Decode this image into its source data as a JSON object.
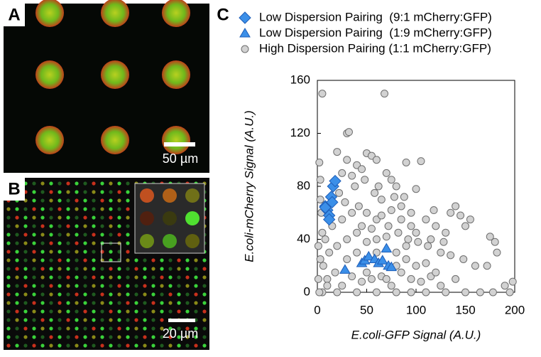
{
  "panel_a": {
    "label": "A",
    "scale_bar": "50 µm"
  },
  "panel_b": {
    "label": "B",
    "scale_bar": "20 µm"
  },
  "chart_data": {
    "type": "scatter",
    "panel_label": "C",
    "xlabel": "E.coli-GFP Signal (A.U.)",
    "ylabel": "E.coli-mCherry Signal (A.U.)",
    "xlim": [
      0,
      200
    ],
    "ylim": [
      0,
      160
    ],
    "xticks": [
      0,
      50,
      100,
      150,
      200
    ],
    "yticks": [
      0,
      40,
      80,
      120,
      160
    ],
    "grid": false,
    "series": [
      {
        "name": "Low Dispersion Pairing  (9:1 mCherry:GFP)",
        "marker": "diamond",
        "color": "#3b8fe8",
        "x": [
          8,
          10,
          12,
          14,
          16,
          18,
          12,
          15,
          8
        ],
        "y": [
          65,
          62,
          58,
          72,
          80,
          84,
          55,
          68,
          64
        ]
      },
      {
        "name": "Low Dispersion Pairing  (1:9 mCherry:GFP)",
        "marker": "triangle",
        "color": "#3b8fe8",
        "x": [
          28,
          45,
          48,
          52,
          58,
          62,
          66,
          70,
          72,
          75
        ],
        "y": [
          17,
          22,
          24,
          27,
          25,
          22,
          24,
          33,
          20,
          19
        ]
      },
      {
        "name": "High Dispersion Pairing (1:1 mCherry:GFP)",
        "marker": "circle",
        "color": "#d2d2d2",
        "x": [
          5,
          68,
          30,
          32,
          20,
          50,
          55,
          60,
          90,
          105,
          2,
          40,
          45,
          70,
          75,
          3,
          25,
          35,
          80,
          100,
          140,
          145,
          155,
          150,
          130,
          120,
          110,
          95,
          85,
          65,
          58,
          38,
          22,
          28,
          42,
          50,
          60,
          72,
          82,
          92,
          102,
          112,
          125,
          135,
          148,
          160,
          175,
          180,
          182,
          172,
          190,
          198,
          195,
          178,
          165,
          150,
          130,
          110,
          95,
          80,
          60,
          40,
          20,
          5,
          2,
          10,
          18,
          25,
          35,
          45,
          55,
          65,
          75,
          85,
          95,
          105,
          115,
          125,
          140,
          12,
          20,
          30,
          40,
          50,
          60,
          70,
          80,
          90,
          100,
          110,
          120,
          5,
          8,
          15,
          25,
          35,
          45,
          55,
          65,
          75,
          85,
          95,
          3,
          6,
          10,
          30,
          40,
          50,
          60,
          70,
          80,
          90,
          100,
          115,
          128,
          135,
          3,
          4,
          30,
          48,
          62,
          78,
          88,
          118,
          1,
          1
        ],
        "y": [
          150,
          150,
          120,
          121,
          106,
          105,
          103,
          100,
          98,
          99,
          98,
          96,
          93,
          90,
          85,
          85,
          90,
          88,
          80,
          78,
          65,
          58,
          55,
          50,
          45,
          50,
          55,
          60,
          65,
          70,
          75,
          80,
          75,
          68,
          65,
          60,
          55,
          50,
          45,
          40,
          38,
          35,
          30,
          28,
          25,
          20,
          42,
          38,
          30,
          20,
          5,
          8,
          0,
          0,
          0,
          0,
          0,
          0,
          0,
          0,
          0,
          0,
          0,
          0,
          0,
          10,
          15,
          5,
          12,
          8,
          10,
          12,
          5,
          15,
          10,
          8,
          12,
          5,
          10,
          30,
          35,
          40,
          45,
          38,
          40,
          42,
          30,
          25,
          20,
          22,
          15,
          45,
          40,
          50,
          55,
          60,
          50,
          48,
          58,
          62,
          55,
          50,
          25,
          20,
          5,
          25,
          30,
          15,
          30,
          10,
          20,
          35,
          45,
          40,
          38,
          60,
          70,
          60,
          100,
          85,
          80,
          72,
          72,
          62,
          35,
          10
        ]
      }
    ]
  }
}
